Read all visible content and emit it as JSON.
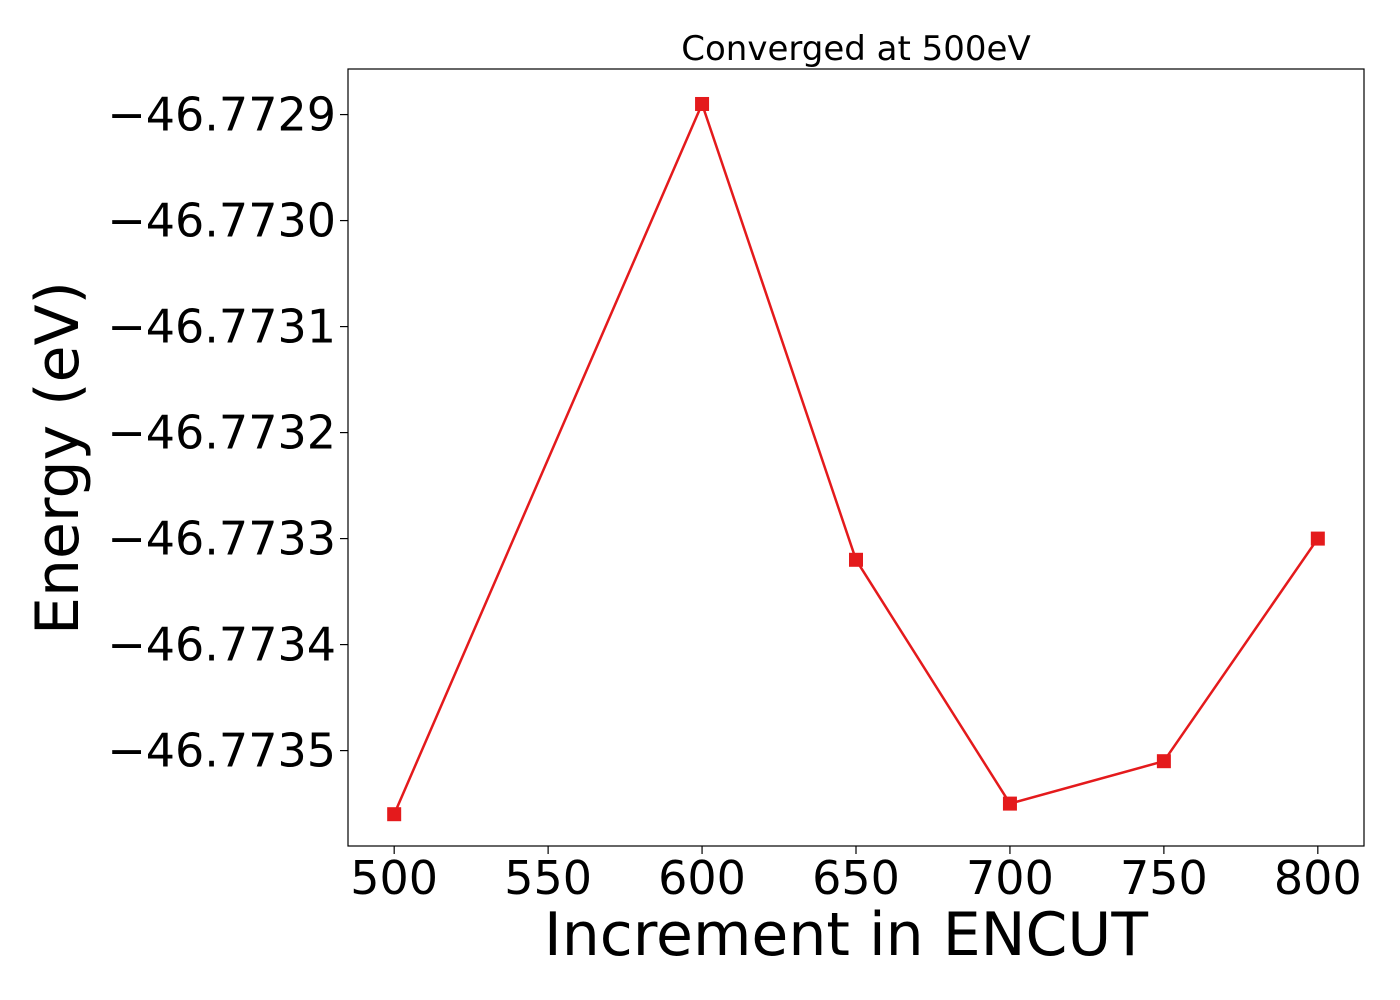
{
  "chart_data": {
    "type": "line",
    "title": "Converged at 500eV",
    "xlabel": "Increment in ENCUT",
    "ylabel": "Energy (eV)",
    "x": [
      500,
      600,
      650,
      700,
      750,
      800
    ],
    "series": [
      {
        "values": [
          -46.77356,
          -46.77289,
          -46.77332,
          -46.77355,
          -46.77351,
          -46.7733
        ],
        "color": "#e41a1c",
        "marker": "square"
      }
    ],
    "xticks": [
      500,
      550,
      600,
      650,
      700,
      750,
      800
    ],
    "xtick_labels": [
      "500",
      "550",
      "600",
      "650",
      "700",
      "750",
      "800"
    ],
    "yticks": [
      -46.7735,
      -46.7734,
      -46.7733,
      -46.7732,
      -46.7731,
      -46.773,
      -46.7729
    ],
    "ytick_labels": [
      "−46.7735",
      "−46.7734",
      "−46.7733",
      "−46.7732",
      "−46.7731",
      "−46.7730",
      "−46.7729"
    ],
    "xlim": [
      485,
      815
    ],
    "ylim": [
      -46.77359,
      -46.772857
    ],
    "grid": false,
    "legend": false
  }
}
